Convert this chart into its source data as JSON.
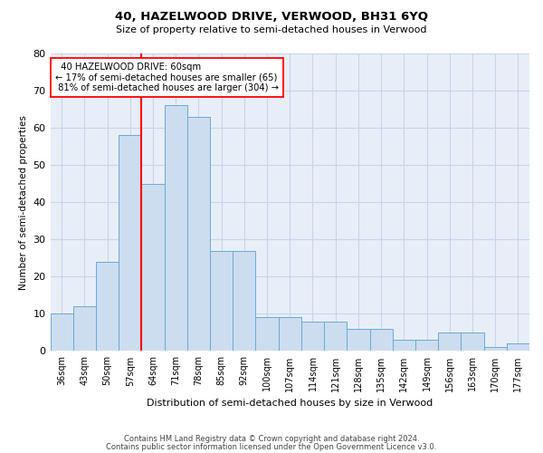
{
  "title": "40, HAZELWOOD DRIVE, VERWOOD, BH31 6YQ",
  "subtitle": "Size of property relative to semi-detached houses in Verwood",
  "xlabel": "Distribution of semi-detached houses by size in Verwood",
  "ylabel": "Number of semi-detached properties",
  "categories": [
    "36sqm",
    "43sqm",
    "50sqm",
    "57sqm",
    "64sqm",
    "71sqm",
    "78sqm",
    "85sqm",
    "92sqm",
    "100sqm",
    "107sqm",
    "114sqm",
    "121sqm",
    "128sqm",
    "135sqm",
    "142sqm",
    "149sqm",
    "156sqm",
    "163sqm",
    "170sqm",
    "177sqm"
  ],
  "values": [
    10,
    12,
    24,
    58,
    45,
    66,
    63,
    27,
    27,
    9,
    9,
    8,
    8,
    6,
    6,
    3,
    3,
    5,
    5,
    1,
    2
  ],
  "bar_color": "#ccddf0",
  "bar_edge_color": "#6aaad4",
  "grid_color": "#c8d4e8",
  "background_color": "#e8eef8",
  "pct_smaller": 17,
  "count_smaller": 65,
  "pct_larger": 81,
  "count_larger": 304,
  "vline_color": "red",
  "annotation_box_color": "white",
  "annotation_border_color": "red",
  "footer1": "Contains HM Land Registry data © Crown copyright and database right 2024.",
  "footer2": "Contains public sector information licensed under the Open Government Licence v3.0.",
  "ylim": [
    0,
    80
  ],
  "yticks": [
    0,
    10,
    20,
    30,
    40,
    50,
    60,
    70,
    80
  ],
  "vline_x": 3.5
}
